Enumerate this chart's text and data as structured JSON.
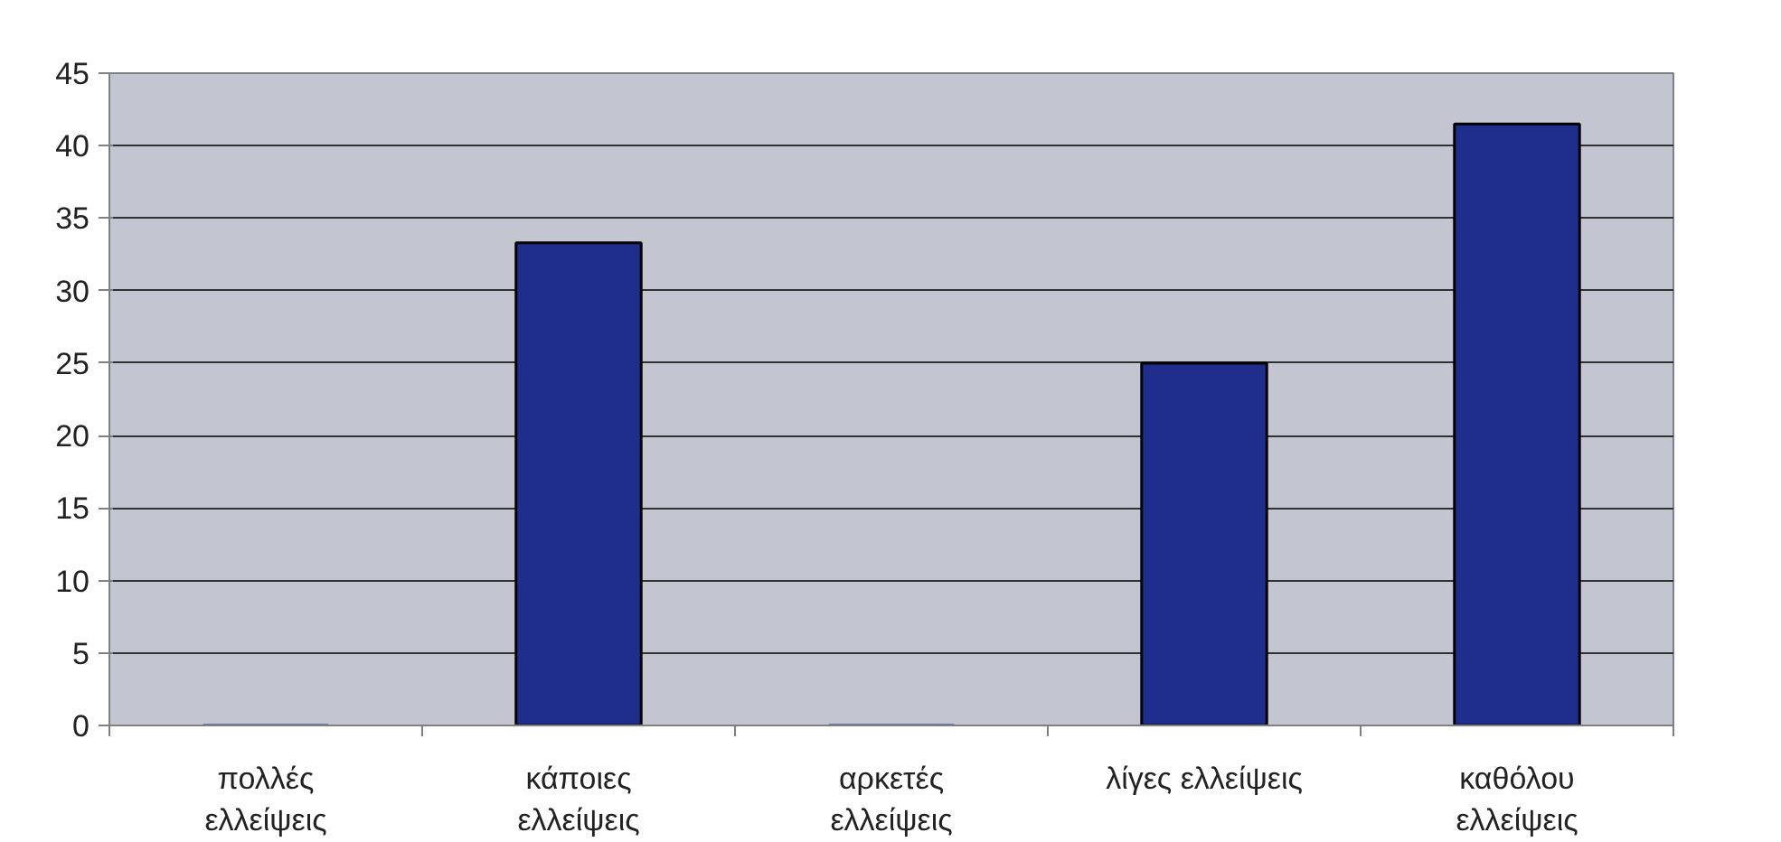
{
  "chart_data": {
    "type": "bar",
    "categories": [
      "πολλές ελλείψεις",
      "κάποιες ελλείψεις",
      "αρκετές ελλείψεις",
      "λίγες ελλείψεις",
      "καθόλου ελλείψεις"
    ],
    "values": [
      0,
      33.3,
      0,
      25,
      41.5
    ],
    "color": "#1f2e8c",
    "ylim": [
      0,
      45
    ],
    "yticks": [
      0,
      5,
      10,
      15,
      20,
      25,
      30,
      35,
      40,
      45
    ],
    "grid": "y"
  }
}
